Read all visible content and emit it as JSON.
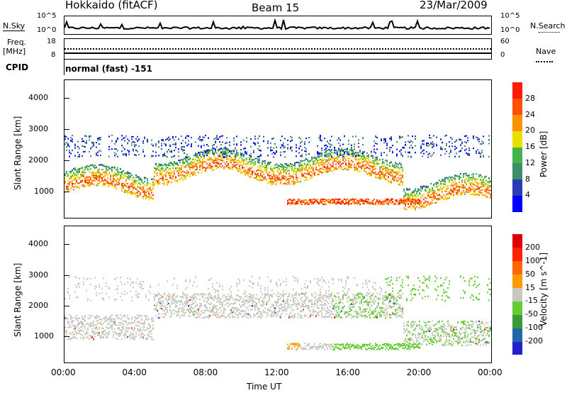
{
  "header": {
    "station": "Hokkaido (fitACF)",
    "beam": "Beam 15",
    "date": "23/Mar/2009"
  },
  "top_panels": {
    "nsky_label": "N.Sky",
    "nsearch_label": "N.Search",
    "nsky_ticks": [
      "10^5",
      "10^0"
    ],
    "nsearch_ticks": [
      "10^5",
      "10^0"
    ],
    "freq_label": "Freq.",
    "freq_unit": "[MHz]",
    "freq_ticks": [
      "18",
      "8"
    ],
    "nave_label": "Nave",
    "nave_ticks": [
      "60",
      "0"
    ],
    "cpid_label": "CPID",
    "cpid_value": "normal (fast) -151"
  },
  "chart_data": [
    {
      "type": "heatmap",
      "name": "power",
      "ylabel": "Slant Range [km]",
      "xlabel": "",
      "x_ticks": [
        "00:00",
        "04:00",
        "08:00",
        "12:00",
        "16:00",
        "20:00",
        "00:00"
      ],
      "y_ticks": [
        1000,
        2000,
        3000,
        4000
      ],
      "xlim_hours": [
        0,
        24
      ],
      "ylim": [
        180,
        4600
      ],
      "colorbar": {
        "label": "Power [dB]",
        "ticks": [
          4,
          8,
          12,
          16,
          20,
          24,
          28
        ],
        "colors": [
          "#0000ff",
          "#2a3cb4",
          "#3d8c6a",
          "#44b34a",
          "#e8e000",
          "#ff9000",
          "#ff5000",
          "#ff1a00"
        ]
      }
    },
    {
      "type": "heatmap",
      "name": "velocity",
      "ylabel": "Slant Range [km]",
      "xlabel": "Time UT",
      "x_ticks": [
        "00:00",
        "04:00",
        "08:00",
        "12:00",
        "16:00",
        "20:00",
        "00:00"
      ],
      "y_ticks": [
        1000,
        2000,
        3000,
        4000
      ],
      "xlim_hours": [
        0,
        24
      ],
      "ylim": [
        180,
        4600
      ],
      "colorbar": {
        "label": "Velocity [m s^-1]",
        "ticks": [
          200,
          100,
          50,
          15,
          -15,
          -50,
          -100,
          -200
        ],
        "colors": [
          "#2222cc",
          "#2266aa",
          "#3a9a3a",
          "#66cc33",
          "#c8c8c0",
          "#ff9900",
          "#ff6600",
          "#ff2200",
          "#dd0000"
        ]
      }
    }
  ]
}
